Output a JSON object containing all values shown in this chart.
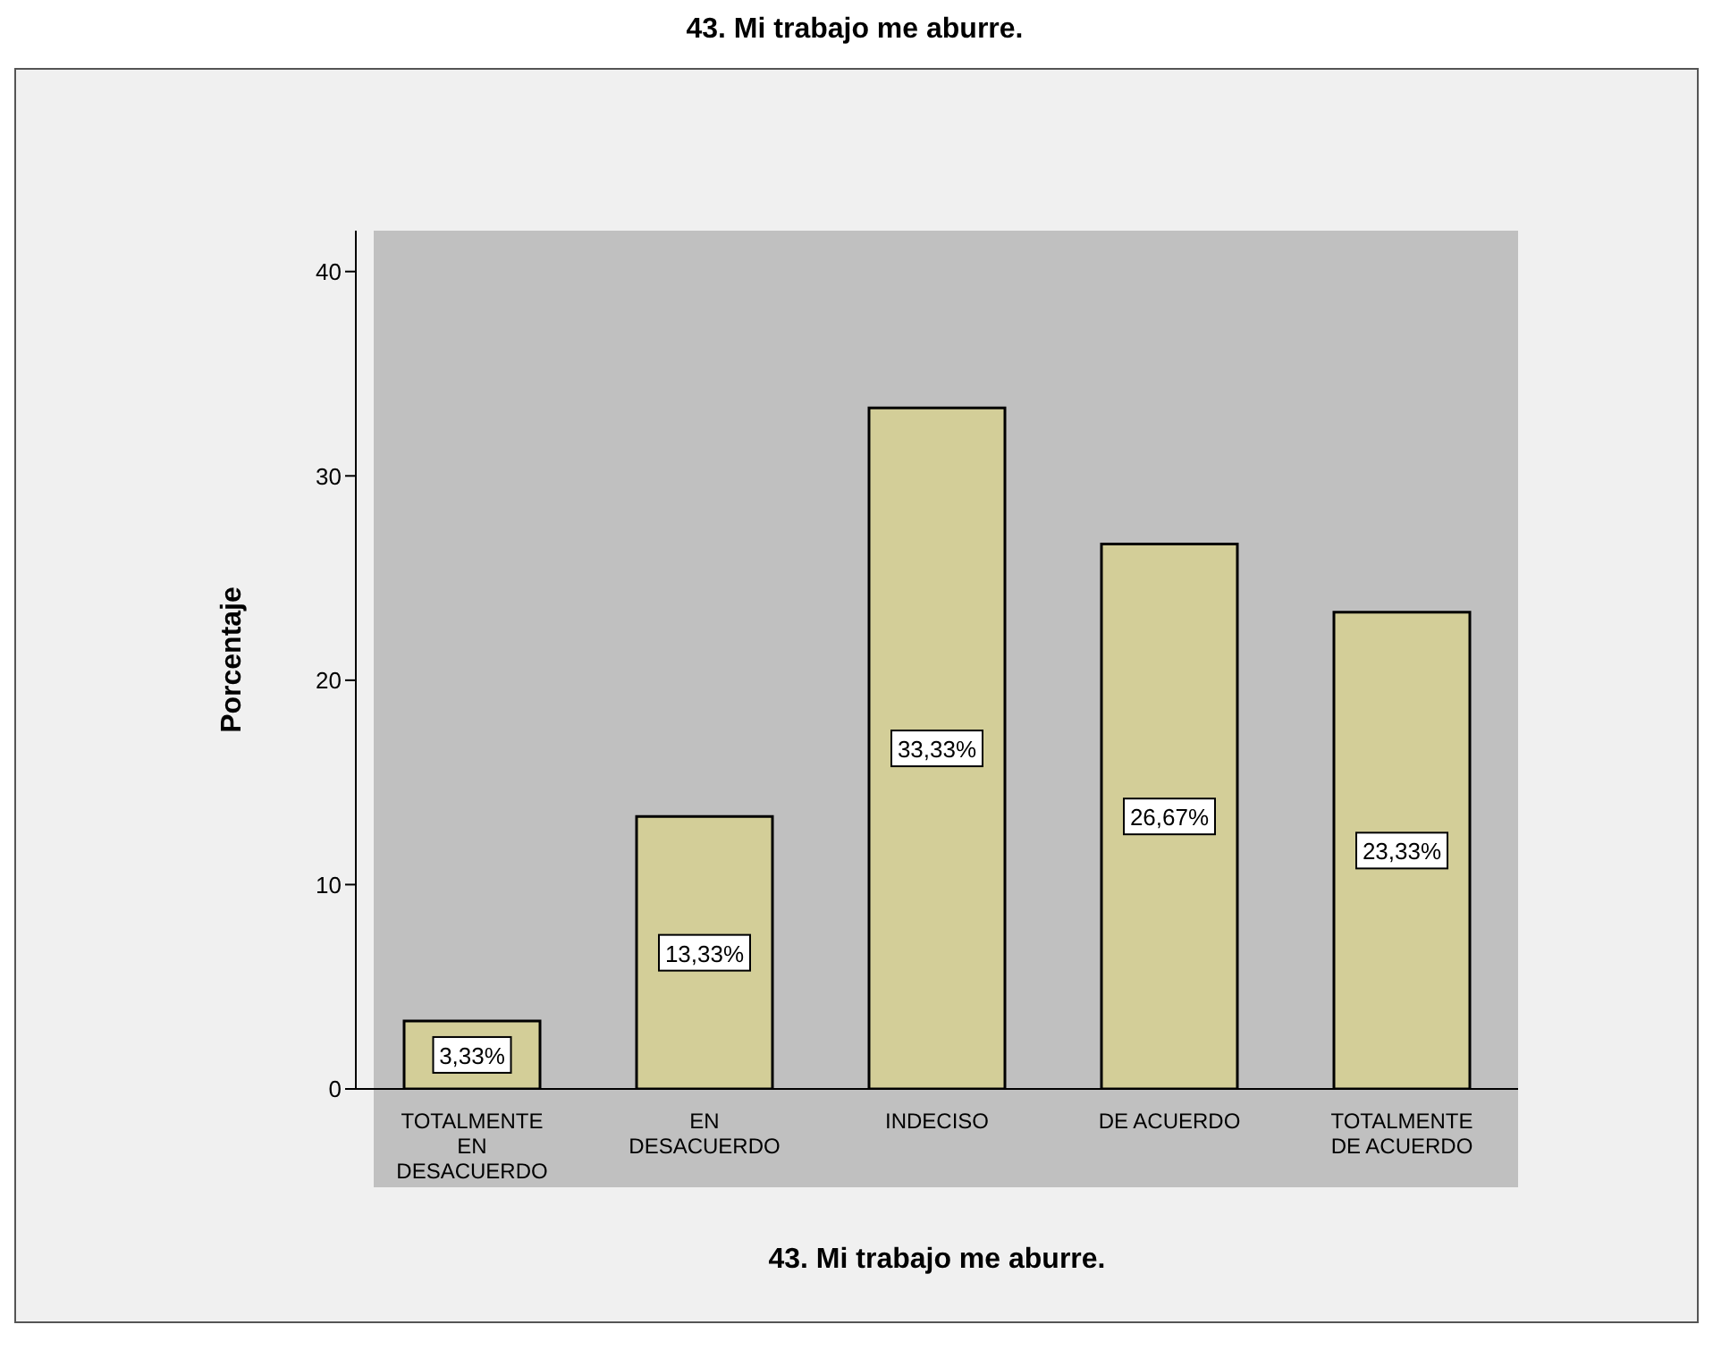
{
  "chart_data": {
    "type": "bar",
    "title": "43. Mi trabajo me aburre.",
    "xlabel": "43. Mi trabajo me aburre.",
    "ylabel": "Porcentaje",
    "categories": [
      "TOTALMENTE EN DESACUERDO",
      "EN DESACUERDO",
      "INDECISO",
      "DE ACUERDO",
      "TOTALMENTE DE ACUERDO"
    ],
    "values": [
      3.33,
      13.33,
      33.33,
      26.67,
      23.33
    ],
    "value_labels": [
      "3,33%",
      "13,33%",
      "33,33%",
      "26,67%",
      "23,33%"
    ],
    "color": "#d3ce98",
    "ylim": [
      0,
      42
    ],
    "yticks": [
      0,
      10,
      20,
      30,
      40
    ],
    "grid": false,
    "legend": false
  }
}
